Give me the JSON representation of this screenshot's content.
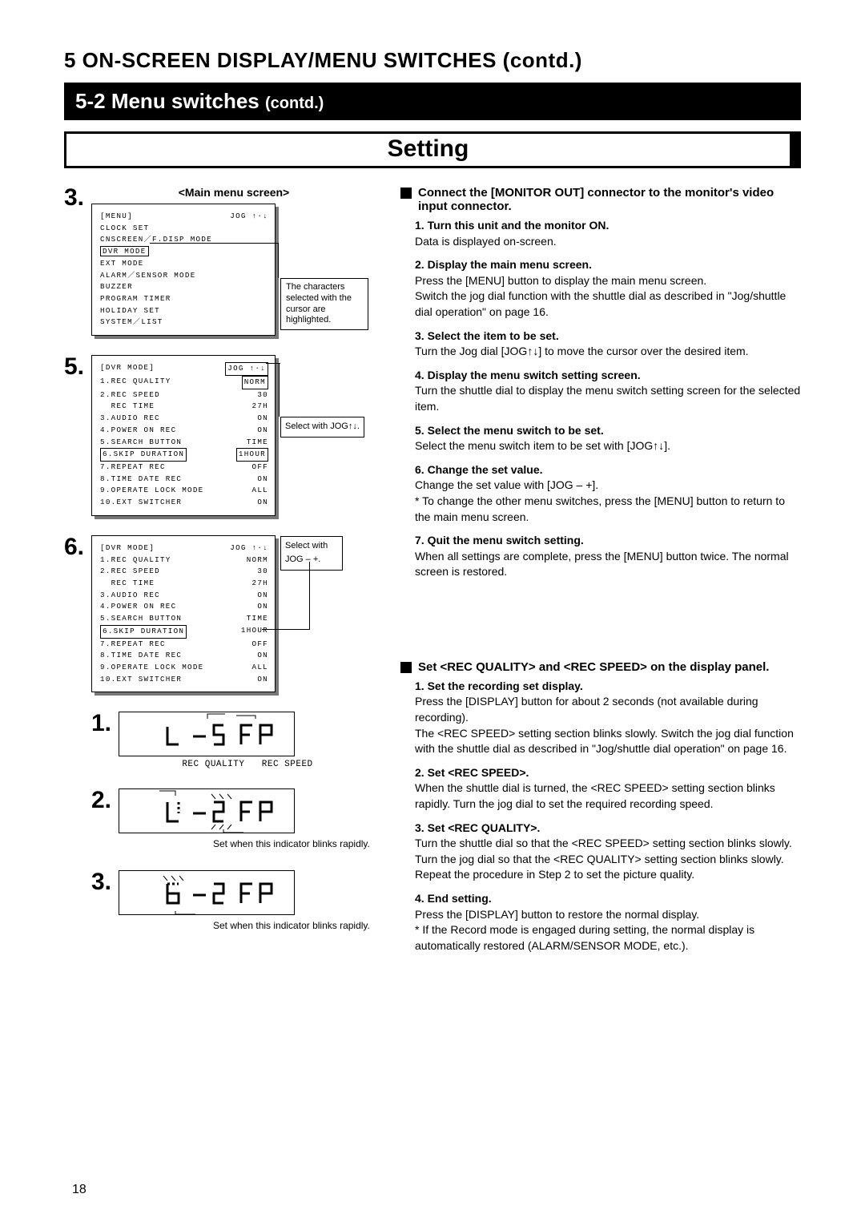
{
  "chapter": "5  ON-SCREEN DISPLAY/MENU SWITCHES (contd.)",
  "section": {
    "num": "5-2",
    "title": "Menu switches",
    "contd": "(contd.)"
  },
  "setting_title": "Setting",
  "main_menu_label": "<Main menu screen>",
  "screen3": {
    "header_left": "[MENU]",
    "header_right": "JOG ↑·↓",
    "lines": [
      "CLOCK SET",
      "CNSCREEN／F.DISP MODE",
      "EXT MODE",
      "ALARM／SENSOR MODE",
      "BUZZER",
      "PROGRAM TIMER",
      "HOLIDAY SET",
      "SYSTEM／LIST"
    ],
    "highlight": "DVR MODE",
    "callout": "The characters selected with the cursor are highlighted."
  },
  "screen5": {
    "header_left": "[DVR MODE]",
    "header_right": "JOG ↑·↓",
    "items": [
      [
        "1.REC QUALITY",
        "NORM"
      ],
      [
        "2.REC SPEED",
        "30"
      ],
      [
        "  REC TIME",
        "27H"
      ],
      [
        "3.AUDIO REC",
        "ON"
      ],
      [
        "4.POWER ON REC",
        "ON"
      ],
      [
        "5.SEARCH BUTTON",
        "TIME"
      ],
      [
        "6.SKIP DURATION",
        "1HOUR"
      ],
      [
        "7.REPEAT REC",
        "OFF"
      ],
      [
        "8.TIME DATE REC",
        "ON"
      ],
      [
        "9.OPERATE LOCK MODE",
        "ALL"
      ],
      [
        "10.EXT SWITCHER",
        "ON"
      ]
    ],
    "hl_row": 6,
    "hl_hdr_right": true,
    "callout": "Select with JOG↑↓."
  },
  "screen6": {
    "header_left": "[DVR MODE]",
    "header_right": "JOG ↑·↓",
    "items": [
      [
        "1.REC QUALITY",
        "NORM"
      ],
      [
        "2.REC SPEED",
        "30"
      ],
      [
        "  REC TIME",
        "27H"
      ],
      [
        "3.AUDIO REC",
        "ON"
      ],
      [
        "4.POWER ON REC",
        "ON"
      ],
      [
        "5.SEARCH BUTTON",
        "TIME"
      ],
      [
        "6.SKIP DURATION",
        "1HOUR"
      ],
      [
        "7.REPEAT REC",
        "OFF"
      ],
      [
        "8.TIME DATE REC",
        "ON"
      ],
      [
        "9.OPERATE LOCK MODE",
        "ALL"
      ],
      [
        "10.EXT SWITCHER",
        "ON"
      ]
    ],
    "hl_left_row": 6,
    "callout": "Select with JOG – +."
  },
  "lcd": {
    "rec_quality_label": "REC QUALITY",
    "rec_speed_label": "REC SPEED",
    "note2": "Set when this indicator blinks rapidly.",
    "note3": "Set when this indicator blinks rapidly."
  },
  "right1": {
    "heading": "Connect the [MONITOR OUT] connector to the monitor's video input connector.",
    "items": [
      {
        "t": "1. Turn this unit and the monitor ON.",
        "b": "Data is displayed on-screen."
      },
      {
        "t": "2. Display the main menu screen.",
        "b": "Press the [MENU] button to display the main menu screen.\nSwitch the jog dial function with the shuttle dial as described in \"Jog/shuttle dial operation\" on page 16."
      },
      {
        "t": "3. Select the item to be set.",
        "b": "Turn the Jog dial [JOG↑↓] to move the cursor over the desired item."
      },
      {
        "t": "4. Display the menu switch setting screen.",
        "b": "Turn the shuttle dial to display the menu switch setting screen for the selected item."
      },
      {
        "t": "5. Select the menu switch to be set.",
        "b": "Select the menu switch item to be set with [JOG↑↓]."
      },
      {
        "t": "6. Change the set value.",
        "b": "Change the set value with [JOG – +].\n* To change the other menu switches, press the [MENU] button to return to the main menu screen."
      },
      {
        "t": "7. Quit the menu switch setting.",
        "b": "When all settings are complete, press the [MENU] button twice.  The normal screen is restored."
      }
    ]
  },
  "right2": {
    "heading": "Set <REC QUALITY> and <REC SPEED> on the display panel.",
    "items": [
      {
        "t": "1. Set the recording set display.",
        "b": "Press the [DISPLAY] button for about 2 seconds (not available during recording).\nThe <REC SPEED> setting section blinks slowly. Switch the jog dial function with the shuttle dial as described in \"Jog/shuttle dial operation\" on page 16."
      },
      {
        "t": "2. Set <REC SPEED>.",
        "b": "When the shuttle dial is turned, the <REC SPEED> setting section blinks rapidly.  Turn the jog dial to set the required recording speed."
      },
      {
        "t": "3. Set <REC QUALITY>.",
        "b": "Turn the shuttle dial so that the <REC SPEED> setting section blinks slowly.  Turn the jog dial so that the <REC QUALITY> setting section blinks slowly.  Repeat the procedure in Step 2 to set the picture quality."
      },
      {
        "t": "4. End setting.",
        "b": "Press the [DISPLAY] button to restore the normal display.\n* If the Record mode is engaged during setting, the normal display is automatically restored (ALARM/SENSOR MODE, etc.)."
      }
    ]
  },
  "page_number": "18"
}
